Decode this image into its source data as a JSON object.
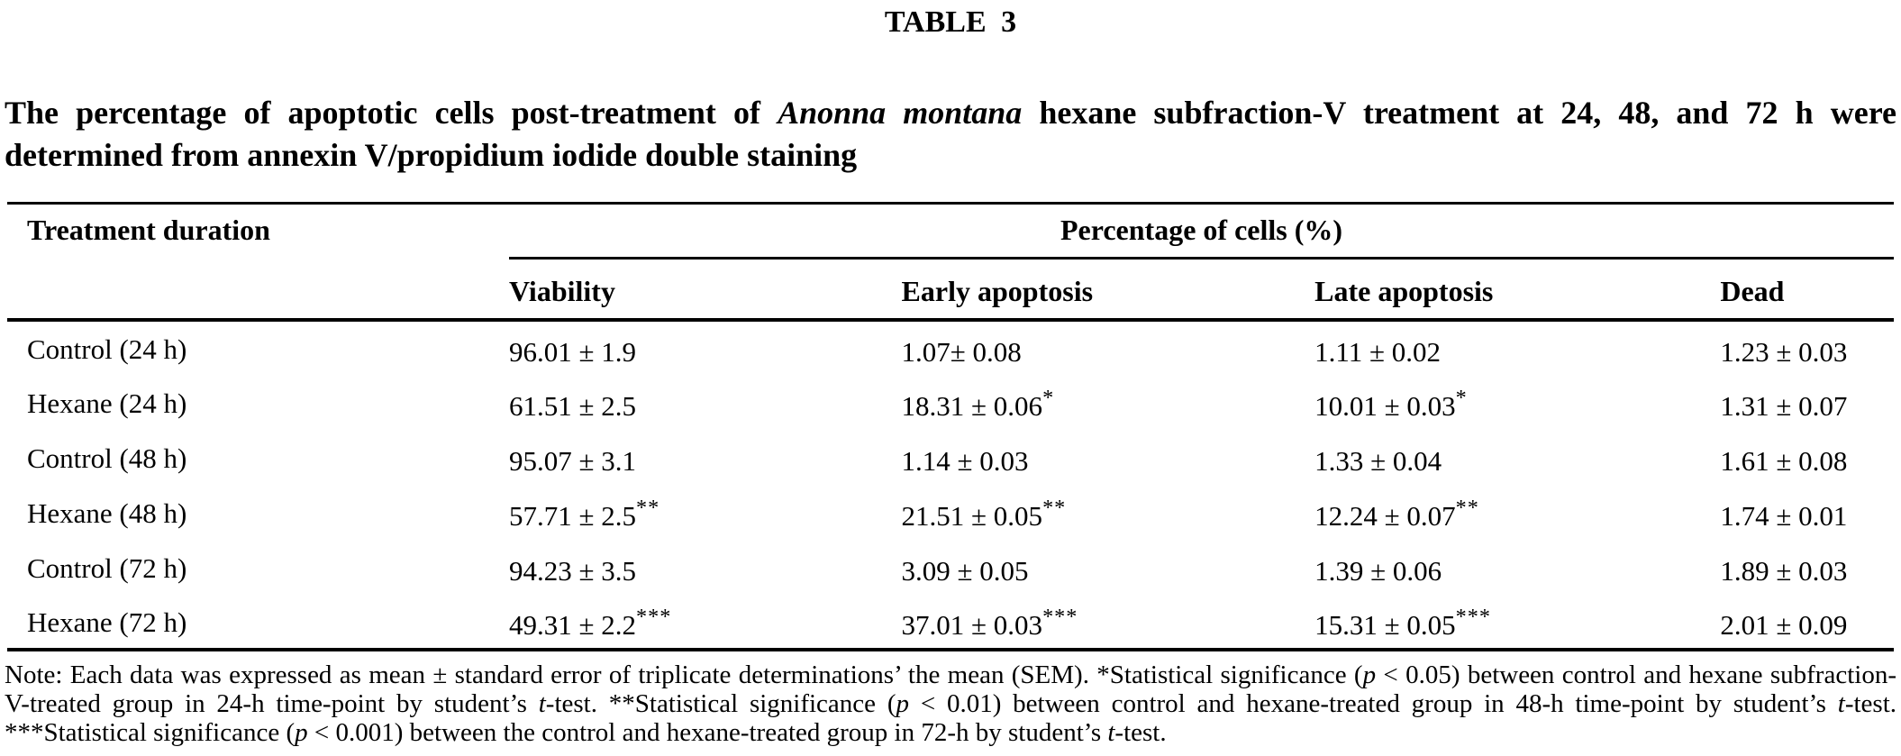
{
  "title": "TABLE 3",
  "caption": {
    "line1_pre": "The percentage of apoptotic cells post-treatment of ",
    "line1_italic": "Anonna montana",
    "line1_post": " hexane subfraction-V treatment at 24, 48, and 72 h were",
    "line2": "determined from annexin V/propidium iodide double staining"
  },
  "table": {
    "col1_header": "Treatment duration",
    "span_header": "Percentage of cells (%)",
    "sub_headers": {
      "viability": "Viability",
      "early": "Early apoptosis",
      "late": "Late apoptosis",
      "dead": "Dead"
    },
    "rows": [
      {
        "treatment": "Control (24 h)",
        "viability": {
          "v": "96.01 ± 1.9",
          "s": ""
        },
        "early": {
          "v": "1.07± 0.08",
          "s": ""
        },
        "late": {
          "v": "1.11 ± 0.02",
          "s": ""
        },
        "dead": {
          "v": "1.23 ± 0.03",
          "s": ""
        }
      },
      {
        "treatment": "Hexane (24 h)",
        "viability": {
          "v": "61.51 ± 2.5",
          "s": ""
        },
        "early": {
          "v": "18.31 ± 0.06",
          "s": "*"
        },
        "late": {
          "v": "10.01 ± 0.03",
          "s": "*"
        },
        "dead": {
          "v": "1.31 ± 0.07",
          "s": ""
        }
      },
      {
        "treatment": "Control (48 h)",
        "viability": {
          "v": "95.07 ± 3.1",
          "s": ""
        },
        "early": {
          "v": "1.14 ± 0.03",
          "s": ""
        },
        "late": {
          "v": "1.33 ± 0.04",
          "s": ""
        },
        "dead": {
          "v": "1.61 ± 0.08",
          "s": ""
        }
      },
      {
        "treatment": "Hexane (48 h)",
        "viability": {
          "v": "57.71 ± 2.5",
          "s": "**"
        },
        "early": {
          "v": "21.51 ± 0.05",
          "s": "**"
        },
        "late": {
          "v": "12.24 ± 0.07",
          "s": "**"
        },
        "dead": {
          "v": "1.74 ± 0.01",
          "s": ""
        }
      },
      {
        "treatment": "Control (72 h)",
        "viability": {
          "v": "94.23 ± 3.5",
          "s": ""
        },
        "early": {
          "v": "3.09 ± 0.05",
          "s": ""
        },
        "late": {
          "v": "1.39 ± 0.06",
          "s": ""
        },
        "dead": {
          "v": "1.89 ± 0.03",
          "s": ""
        }
      },
      {
        "treatment": "Hexane (72 h)",
        "viability": {
          "v": "49.31 ± 2.2",
          "s": "***"
        },
        "early": {
          "v": "37.01 ± 0.03",
          "s": "***"
        },
        "late": {
          "v": "15.31 ± 0.05",
          "s": "***"
        },
        "dead": {
          "v": "2.01 ± 0.09",
          "s": ""
        }
      }
    ]
  },
  "note": {
    "segments": [
      {
        "text": "Note: Each data was expressed as mean ± standard error of triplicate determinations’ the mean (SEM). *Statistical significance ("
      },
      {
        "text": "p",
        "italic": true
      },
      {
        "text": " < 0.05) between control and hexane subfraction-V-treated group in 24-h time-point by student’s "
      },
      {
        "text": "t",
        "italic": true
      },
      {
        "text": "-test. **Statistical significance ("
      },
      {
        "text": "p",
        "italic": true
      },
      {
        "text": " < 0.01) between control and hexane-treated group in 48-h time-point by student’s "
      },
      {
        "text": "t",
        "italic": true
      },
      {
        "text": "-test. ***Statistical significance ("
      },
      {
        "text": "p",
        "italic": true
      },
      {
        "text": " < 0.001) between the control and hexane-treated group in 72-h by student’s "
      },
      {
        "text": "t",
        "italic": true
      },
      {
        "text": "-test."
      }
    ]
  }
}
